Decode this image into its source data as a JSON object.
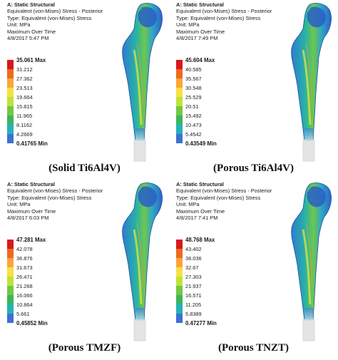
{
  "colors": [
    "#d7191c",
    "#ee6a1f",
    "#fca53b",
    "#f6e244",
    "#bfe23c",
    "#74c842",
    "#3ab65e",
    "#25b2b9",
    "#3d71d1",
    "#2236a5"
  ],
  "panels": [
    {
      "info": {
        "title": "A: Static Structural",
        "line1": "Equivalent (von-Mises) Stress - Posterior",
        "line2": "Type: Equivalent (von-Mises) Stress",
        "line3": "Unit: MPa",
        "line4": "Maximum Over Time",
        "line5": "4/8/2017 5:47 PM"
      },
      "legend": [
        "35.061 Max",
        "31.212",
        "27.362",
        "23.513",
        "19.664",
        "15.815",
        "11.965",
        "8.1162",
        "4.2669",
        "0.41765 Min"
      ],
      "caption": "(Solid Ti6Al4V)"
    },
    {
      "info": {
        "title": "A: Static Structural",
        "line1": "Equivalent (von-Mises) Stress - Posterior",
        "line2": "Type: Equivalent (von-Mises) Stress",
        "line3": "Unit: MPa",
        "line4": "Maximum Over Time",
        "line5": "4/8/2017 7:49 PM"
      },
      "legend": [
        "45.604 Max",
        "40.585",
        "35.567",
        "30.548",
        "25.529",
        "20.51",
        "15.492",
        "10.473",
        "5.4542",
        "0.43549 Min"
      ],
      "caption": "(Porous Ti6Al4V)"
    },
    {
      "info": {
        "title": "A: Static Structural",
        "line1": "Equivalent (von-Mises) Stress - Posterior",
        "line2": "Type: Equivalent (von-Mises) Stress",
        "line3": "Unit: MPa",
        "line4": "Maximum Over Time",
        "line5": "4/8/2017 6:03 PM"
      },
      "legend": [
        "47.281 Max",
        "42.078",
        "36.876",
        "31.673",
        "26.471",
        "21.268",
        "16.066",
        "10.864",
        "5.661",
        "0.45852 Min"
      ],
      "caption": "(Porous TMZF)"
    },
    {
      "info": {
        "title": "A: Static Structural",
        "line1": "Equivalent (von-Mises) Stress - Posterior",
        "line2": "Type: Equivalent (von-Mises) Stress",
        "line3": "Unit: MPa",
        "line4": "Maximum Over Time",
        "line5": "4/8/2017 7:41 PM"
      },
      "legend": [
        "48.768 Max",
        "43.402",
        "38.036",
        "32.67",
        "27.303",
        "21.937",
        "16.571",
        "11.205",
        "5.8389",
        "0.47277 Min"
      ],
      "caption": "(Porous TNZT)"
    }
  ]
}
